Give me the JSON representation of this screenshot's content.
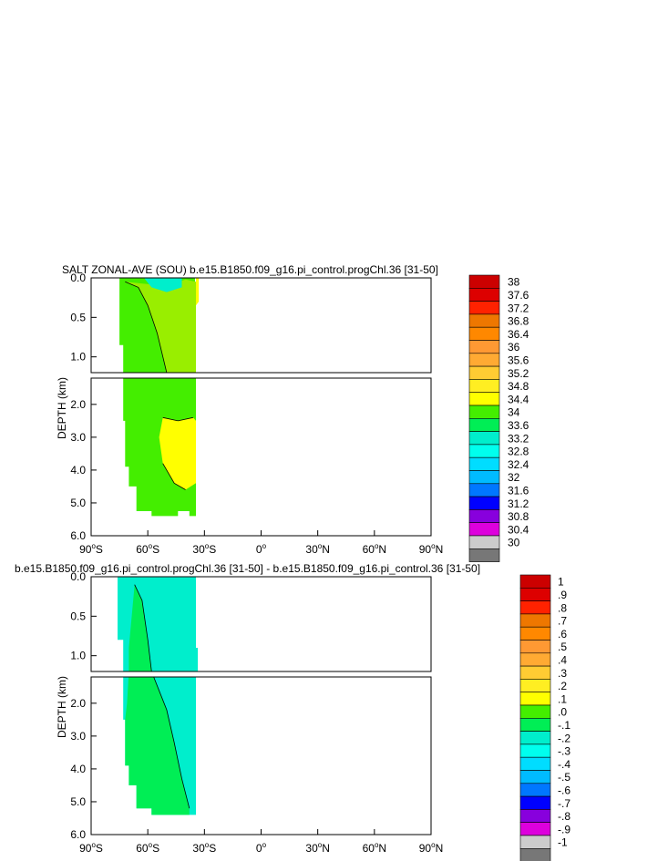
{
  "chart_data": [
    {
      "type": "contour",
      "title": "SALT ZONAL-AVE (SOU) b.e15.B1850.f09_g16.pi_control.progChl.36 [31-50]",
      "ylabel": "DEPTH (km)",
      "xlim": [
        -90,
        90
      ],
      "x_ticks": [
        {
          "v": -90,
          "n": "90",
          "h": "S"
        },
        {
          "v": -60,
          "n": "60",
          "h": "S"
        },
        {
          "v": -30,
          "n": "30",
          "h": "S"
        },
        {
          "v": 0,
          "n": "0",
          "h": ""
        },
        {
          "v": 30,
          "n": "30",
          "h": "N"
        },
        {
          "v": 60,
          "n": "60",
          "h": "N"
        },
        {
          "v": 90,
          "n": "90",
          "h": "N"
        }
      ],
      "upper_panel": {
        "ylim": [
          0.0,
          1.2
        ],
        "y_ticks": [
          {
            "v": 0.0,
            "l": "0.0"
          },
          {
            "v": 0.5,
            "l": "0.5"
          },
          {
            "v": 1.0,
            "l": "1.0"
          }
        ]
      },
      "lower_panel": {
        "ylim": [
          1.2,
          6.0
        ],
        "y_ticks": [
          {
            "v": 2.0,
            "l": "2.0"
          },
          {
            "v": 3.0,
            "l": "3.0"
          },
          {
            "v": 4.0,
            "l": "4.0"
          },
          {
            "v": 5.0,
            "l": "5.0"
          },
          {
            "v": 6.0,
            "l": "6.0"
          }
        ]
      },
      "colorbar": {
        "labels": [
          "38",
          "37.6",
          "37.2",
          "36.8",
          "36.4",
          "36",
          "35.6",
          "35.2",
          "34.8",
          "34.4",
          "34",
          "33.6",
          "33.2",
          "32.8",
          "32.4",
          "32",
          "31.6",
          "31.2",
          "30.8",
          "30.4",
          "30"
        ],
        "colors": [
          "#cc0000",
          "#dd0000",
          "#ff2200",
          "#ee7700",
          "#ff8800",
          "#ff9933",
          "#ffaa33",
          "#ffcc33",
          "#ffee22",
          "#ffff00",
          "#44ee00",
          "#00ee55",
          "#00eecc",
          "#00ffee",
          "#00ddff",
          "#00bbff",
          "#0077ff",
          "#0000ff",
          "#8800dd",
          "#dd00dd",
          "#cccccc",
          "#777777"
        ]
      },
      "regions": [
        {
          "value": 34.2,
          "label": "34 to 34.4 (green)",
          "lat_range": [
            -75,
            -35
          ],
          "depth_range": [
            0.0,
            5.4
          ]
        },
        {
          "value": 33.8,
          "label": "33.6 to 34 (teal) near surface",
          "lat_range": [
            -62,
            -42
          ],
          "depth_range": [
            0.0,
            0.2
          ]
        },
        {
          "value": 34.6,
          "label": "34.4 to 34.8 (yellow-green) upper",
          "lat_range": [
            -72,
            -36
          ],
          "depth_range": [
            0.0,
            1.2
          ]
        },
        {
          "value": 34.9,
          "label": "above 34.8 (yellow) core",
          "lat_range": [
            -52,
            -34
          ],
          "depth_range": [
            2.4,
            4.6
          ]
        },
        {
          "value": 35.0,
          "label": "above 34.8 (yellow) surface",
          "lat_range": [
            -34,
            -33
          ],
          "depth_range": [
            0.0,
            0.3
          ]
        }
      ]
    },
    {
      "type": "contour",
      "title": "b.e15.B1850.f09_g16.pi_control.progChl.36 [31-50] - b.e15.B1850.f09_g16.pi_control.36 [31-50]",
      "ylabel": "DEPTH (km)",
      "xlim": [
        -90,
        90
      ],
      "x_ticks": [
        {
          "v": -90,
          "n": "90",
          "h": "S"
        },
        {
          "v": -60,
          "n": "60",
          "h": "S"
        },
        {
          "v": -30,
          "n": "30",
          "h": "S"
        },
        {
          "v": 0,
          "n": "0",
          "h": ""
        },
        {
          "v": 30,
          "n": "30",
          "h": "N"
        },
        {
          "v": 60,
          "n": "60",
          "h": "N"
        },
        {
          "v": 90,
          "n": "90",
          "h": "N"
        }
      ],
      "upper_panel": {
        "ylim": [
          0.0,
          1.2
        ],
        "y_ticks": [
          {
            "v": 0.0,
            "l": "0.0"
          },
          {
            "v": 0.5,
            "l": "0.5"
          },
          {
            "v": 1.0,
            "l": "1.0"
          }
        ]
      },
      "lower_panel": {
        "ylim": [
          1.2,
          6.0
        ],
        "y_ticks": [
          {
            "v": 2.0,
            "l": "2.0"
          },
          {
            "v": 3.0,
            "l": "3.0"
          },
          {
            "v": 4.0,
            "l": "4.0"
          },
          {
            "v": 5.0,
            "l": "5.0"
          },
          {
            "v": 6.0,
            "l": "6.0"
          }
        ]
      },
      "colorbar": {
        "labels": [
          "1",
          ".9",
          ".8",
          ".7",
          ".6",
          ".5",
          ".4",
          ".3",
          ".2",
          ".1",
          ".0",
          "-.1",
          "-.2",
          "-.3",
          "-.4",
          "-.5",
          "-.6",
          "-.7",
          "-.8",
          "-.9",
          "-1"
        ],
        "colors": [
          "#cc0000",
          "#dd0000",
          "#ff2200",
          "#ee7700",
          "#ff8800",
          "#ff9933",
          "#ffaa33",
          "#ffcc33",
          "#ffee22",
          "#ffff00",
          "#44ee00",
          "#00ee55",
          "#00eecc",
          "#00ffee",
          "#00ddff",
          "#00bbff",
          "#0077ff",
          "#0000ff",
          "#8800dd",
          "#dd00dd",
          "#cccccc",
          "#777777"
        ]
      },
      "regions": [
        {
          "value": -0.05,
          "label": "-.1 to .0 (cyan) background",
          "lat_range": [
            -76,
            -34
          ],
          "depth_range": [
            0.0,
            5.4
          ]
        },
        {
          "value": 0.05,
          "label": ".0 to .1 (green) tongue",
          "lat_range": [
            -73,
            -38
          ],
          "depth_range": [
            0.1,
            5.4
          ]
        }
      ]
    }
  ]
}
